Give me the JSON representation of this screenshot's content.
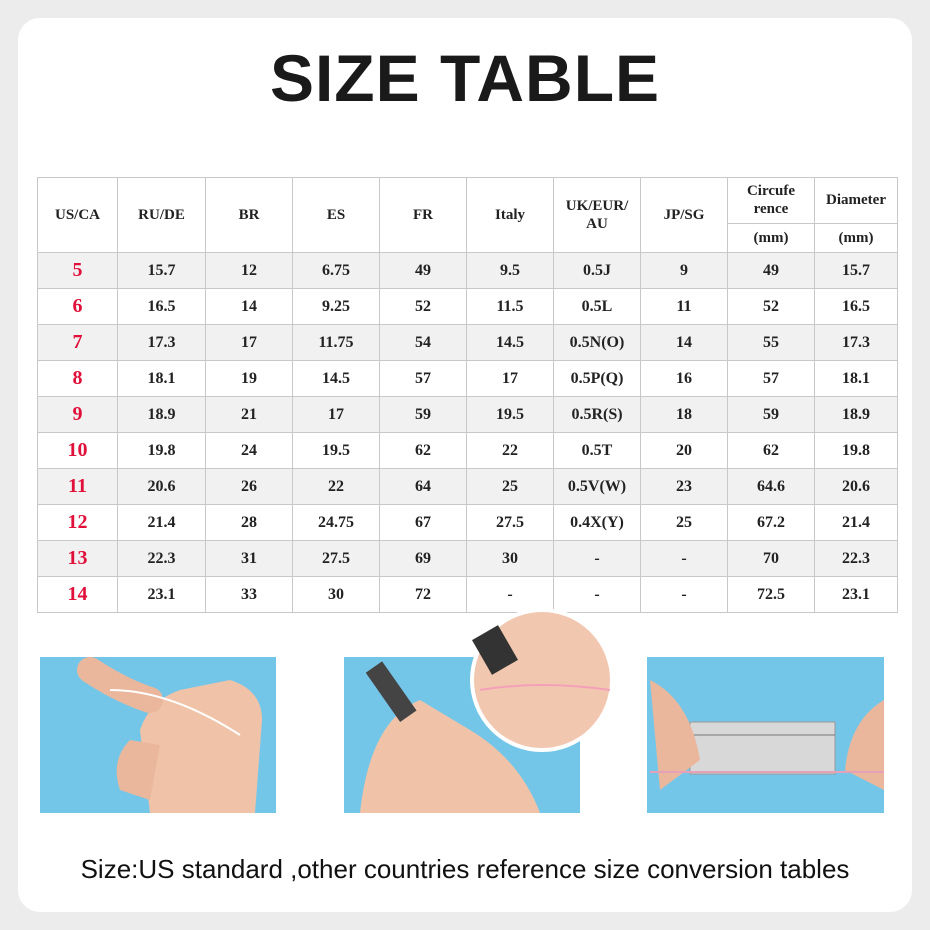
{
  "header": {
    "title": "SIZE TABLE"
  },
  "table": {
    "headers": [
      "US/CA",
      "RU/DE",
      "BR",
      "ES",
      "FR",
      "Italy",
      "UK/EUR/ AU",
      "JP/SG",
      "Circufe rence",
      "Diameter"
    ],
    "units": [
      "(mm)",
      "(mm)"
    ],
    "rows": [
      [
        "5",
        "15.7",
        "12",
        "6.75",
        "49",
        "9.5",
        "0.5J",
        "9",
        "49",
        "15.7"
      ],
      [
        "6",
        "16.5",
        "14",
        "9.25",
        "52",
        "11.5",
        "0.5L",
        "11",
        "52",
        "16.5"
      ],
      [
        "7",
        "17.3",
        "17",
        "11.75",
        "54",
        "14.5",
        "0.5N(O)",
        "14",
        "55",
        "17.3"
      ],
      [
        "8",
        "18.1",
        "19",
        "14.5",
        "57",
        "17",
        "0.5P(Q)",
        "16",
        "57",
        "18.1"
      ],
      [
        "9",
        "18.9",
        "21",
        "17",
        "59",
        "19.5",
        "0.5R(S)",
        "18",
        "59",
        "18.9"
      ],
      [
        "10",
        "19.8",
        "24",
        "19.5",
        "62",
        "22",
        "0.5T",
        "20",
        "62",
        "19.8"
      ],
      [
        "11",
        "20.6",
        "26",
        "22",
        "64",
        "25",
        "0.5V(W)",
        "23",
        "64.6",
        "20.6"
      ],
      [
        "12",
        "21.4",
        "28",
        "24.75",
        "67",
        "27.5",
        "0.4X(Y)",
        "25",
        "67.2",
        "21.4"
      ],
      [
        "13",
        "22.3",
        "31",
        "27.5",
        "69",
        "30",
        "-",
        "-",
        "70",
        "22.3"
      ],
      [
        "14",
        "23.1",
        "33",
        "30",
        "72",
        "-",
        "-",
        "-",
        "72.5",
        "23.1"
      ]
    ]
  },
  "footer": {
    "text": "Size:US standard ,other countries reference size conversion tables"
  }
}
